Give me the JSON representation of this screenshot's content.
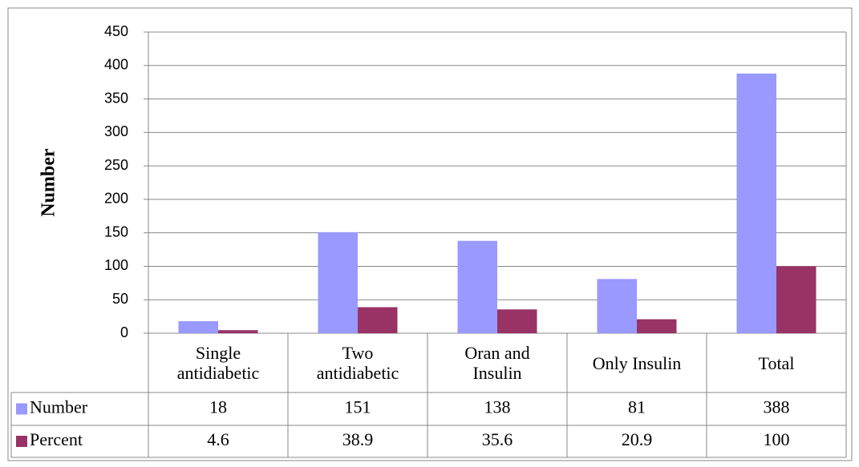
{
  "chart_data": {
    "type": "bar",
    "y_label": "Number",
    "categories": [
      "Single antidiabetic",
      "Two antidiabetic",
      "Oran and Insulin",
      "Only Insulin",
      "Total"
    ],
    "series": [
      {
        "name": "Number",
        "color": "#9999ff",
        "values": [
          18,
          151,
          138,
          81,
          388
        ]
      },
      {
        "name": "Percent",
        "color": "#993366",
        "values": [
          4.6,
          38.9,
          35.6,
          20.9,
          100
        ]
      }
    ],
    "ylim": [
      0,
      450
    ],
    "yticks": [
      0,
      50,
      100,
      150,
      200,
      250,
      300,
      350,
      400,
      450
    ],
    "grid": true
  }
}
